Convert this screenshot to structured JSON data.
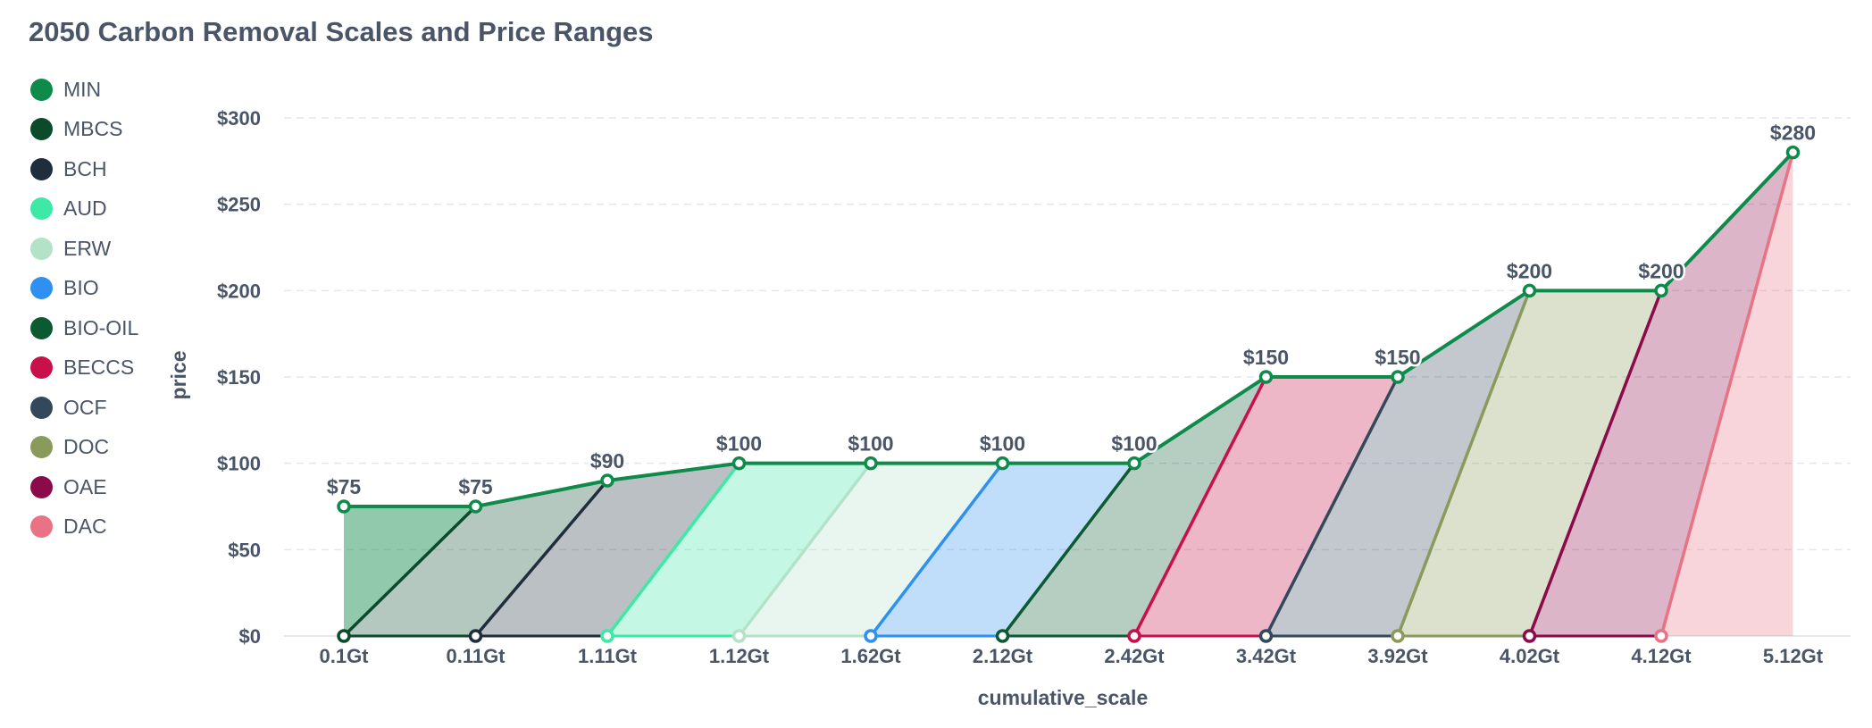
{
  "chart_data": {
    "type": "area",
    "title": "2050 Carbon Removal Scales and Price Ranges",
    "xlabel": "cumulative_scale",
    "ylabel": "price",
    "categories": [
      "0.1Gt",
      "0.11Gt",
      "1.11Gt",
      "1.12Gt",
      "1.62Gt",
      "2.12Gt",
      "2.42Gt",
      "3.42Gt",
      "3.92Gt",
      "4.02Gt",
      "4.12Gt",
      "5.12Gt"
    ],
    "y_ticks": [
      "$0",
      "$50",
      "$100",
      "$150",
      "$200",
      "$250",
      "$300"
    ],
    "ylim": [
      0,
      300
    ],
    "grid": true,
    "legend_position": "left",
    "min_series": {
      "name": "MIN",
      "values": [
        75,
        75,
        90,
        100,
        100,
        100,
        100,
        150,
        150,
        200,
        200,
        280
      ],
      "labels": [
        "$75",
        "$75",
        "$90",
        "$100",
        "$100",
        "$100",
        "$100",
        "$150",
        "$150",
        "$200",
        "$200",
        "$280"
      ],
      "color": "#0e8a4b"
    },
    "series": [
      {
        "name": "MBCS",
        "color": "#0b4a2a",
        "points": [
          [
            0,
            0
          ],
          [
            1,
            75
          ]
        ]
      },
      {
        "name": "BCH",
        "color": "#1f2d3d",
        "points": [
          [
            1,
            0
          ],
          [
            2,
            90
          ]
        ]
      },
      {
        "name": "AUD",
        "color": "#3ee8a5",
        "points": [
          [
            2,
            0
          ],
          [
            3,
            100
          ]
        ]
      },
      {
        "name": "ERW",
        "color": "#b3e2c9",
        "points": [
          [
            3,
            0
          ],
          [
            4,
            100
          ]
        ]
      },
      {
        "name": "BIO",
        "color": "#2e90f0",
        "points": [
          [
            4,
            0
          ],
          [
            5,
            100
          ]
        ]
      },
      {
        "name": "BIO-OIL",
        "color": "#0c5a32",
        "points": [
          [
            5,
            0
          ],
          [
            6,
            100
          ]
        ]
      },
      {
        "name": "BECCS",
        "color": "#c8114a",
        "points": [
          [
            6,
            0
          ],
          [
            7,
            150
          ]
        ]
      },
      {
        "name": "OCF",
        "color": "#34485c",
        "points": [
          [
            7,
            0
          ],
          [
            8,
            150
          ]
        ]
      },
      {
        "name": "DOC",
        "color": "#8a9a5b",
        "points": [
          [
            8,
            0
          ],
          [
            9,
            200
          ]
        ]
      },
      {
        "name": "OAE",
        "color": "#8b0a4a",
        "points": [
          [
            9,
            0
          ],
          [
            10,
            200
          ]
        ]
      },
      {
        "name": "DAC",
        "color": "#e97385",
        "points": [
          [
            10,
            0
          ],
          [
            11,
            280
          ]
        ]
      }
    ]
  }
}
